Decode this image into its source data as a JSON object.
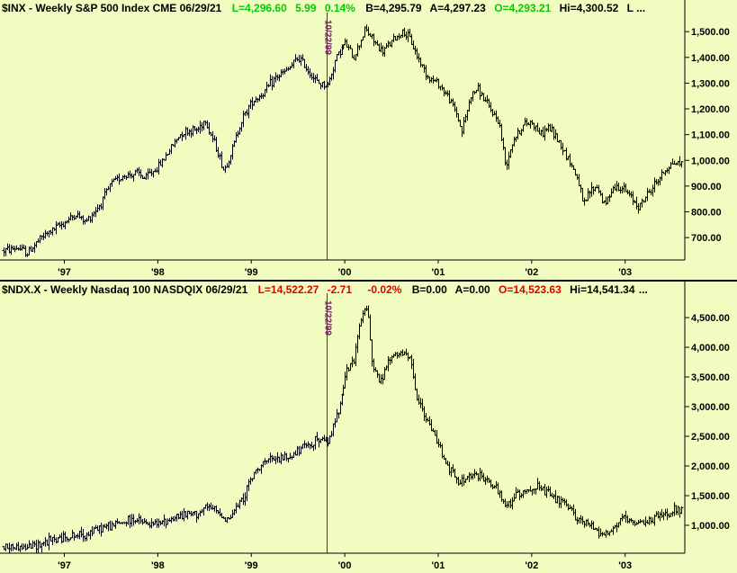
{
  "colors": {
    "background": "#f0fcc0",
    "bar": "#000000",
    "marker": "#7a1a6a",
    "up": "#00cc00",
    "down": "#e00000",
    "frame": "#000000"
  },
  "chart_data": [
    {
      "type": "bar",
      "symbol": "$INX",
      "header": {
        "name": "$INX - Weekly  S&P 500 Index  CME  06/29/21",
        "last": "L=4,296.60",
        "change": "5.99",
        "pct": "0.14%",
        "bid": "B=4,295.79",
        "ask": "A=4,297.23",
        "open": "O=4,293.21",
        "high": "Hi=4,300.52",
        "more": "L ..."
      },
      "header_color": "up",
      "ylim": [
        620,
        1560
      ],
      "y_ticks": [
        700,
        800,
        900,
        1000,
        1100,
        1200,
        1300,
        1400,
        1500
      ],
      "y_tick_labels": [
        "700.00",
        "800.00",
        "900.00",
        "1,000.00",
        "1,100.00",
        "1,200.00",
        "1,300.00",
        "1,400.00",
        "1,500.00"
      ],
      "x_range": [
        1996.35,
        2003.6
      ],
      "x_ticks": [
        1997,
        1998,
        1999,
        2000,
        2001,
        2002,
        2003
      ],
      "x_tick_labels": [
        "'97",
        "'98",
        "'99",
        "'00",
        "'01",
        "'02",
        "'03"
      ],
      "marker": {
        "x": 1999.81,
        "label": "10/22/99"
      },
      "series": [
        [
          1996.35,
          650
        ],
        [
          1996.5,
          660
        ],
        [
          1996.6,
          640
        ],
        [
          1996.75,
          700
        ],
        [
          1997.0,
          760
        ],
        [
          1997.12,
          790
        ],
        [
          1997.22,
          760
        ],
        [
          1997.38,
          830
        ],
        [
          1997.5,
          910
        ],
        [
          1997.62,
          940
        ],
        [
          1997.78,
          950
        ],
        [
          1997.85,
          930
        ],
        [
          1998.0,
          975
        ],
        [
          1998.12,
          1040
        ],
        [
          1998.25,
          1110
        ],
        [
          1998.42,
          1120
        ],
        [
          1998.5,
          1160
        ],
        [
          1998.55,
          1110
        ],
        [
          1998.62,
          1050
        ],
        [
          1998.7,
          960
        ],
        [
          1998.78,
          1030
        ],
        [
          1998.88,
          1150
        ],
        [
          1999.0,
          1230
        ],
        [
          1999.12,
          1260
        ],
        [
          1999.25,
          1320
        ],
        [
          1999.38,
          1350
        ],
        [
          1999.5,
          1400
        ],
        [
          1999.58,
          1360
        ],
        [
          1999.7,
          1300
        ],
        [
          1999.81,
          1290
        ],
        [
          1999.9,
          1400
        ],
        [
          2000.0,
          1455
        ],
        [
          2000.1,
          1400
        ],
        [
          2000.22,
          1510
        ],
        [
          2000.3,
          1470
        ],
        [
          2000.4,
          1420
        ],
        [
          2000.5,
          1460
        ],
        [
          2000.62,
          1500
        ],
        [
          2000.7,
          1470
        ],
        [
          2000.78,
          1400
        ],
        [
          2000.9,
          1320
        ],
        [
          2001.0,
          1300
        ],
        [
          2001.1,
          1250
        ],
        [
          2001.2,
          1180
        ],
        [
          2001.25,
          1110
        ],
        [
          2001.35,
          1250
        ],
        [
          2001.42,
          1280
        ],
        [
          2001.55,
          1200
        ],
        [
          2001.65,
          1150
        ],
        [
          2001.72,
          980
        ],
        [
          2001.8,
          1080
        ],
        [
          2001.92,
          1140
        ],
        [
          2002.0,
          1150
        ],
        [
          2002.1,
          1100
        ],
        [
          2002.18,
          1130
        ],
        [
          2002.28,
          1080
        ],
        [
          2002.4,
          1000
        ],
        [
          2002.5,
          920
        ],
        [
          2002.55,
          820
        ],
        [
          2002.62,
          880
        ],
        [
          2002.7,
          900
        ],
        [
          2002.78,
          820
        ],
        [
          2002.85,
          890
        ],
        [
          2002.95,
          900
        ],
        [
          2003.05,
          860
        ],
        [
          2003.15,
          820
        ],
        [
          2003.22,
          860
        ],
        [
          2003.32,
          910
        ],
        [
          2003.42,
          960
        ],
        [
          2003.5,
          990
        ],
        [
          2003.6,
          990
        ]
      ]
    },
    {
      "type": "bar",
      "symbol": "$NDX.X",
      "header": {
        "name": "$NDX.X - Weekly  Nasdaq 100  NASDQIX  06/29/21",
        "last": "L=14,522.27",
        "change": "-2.71",
        "pct": "-0.02%",
        "bid": "B=0.00",
        "ask": "A=0.00",
        "open": "O=14,523.63",
        "high": "Hi=14,541.34",
        "more": "..."
      },
      "header_color": "down",
      "ylim": [
        560,
        4850
      ],
      "y_ticks": [
        1000,
        1500,
        2000,
        2500,
        3000,
        3500,
        4000,
        4500
      ],
      "y_tick_labels": [
        "1,000.00",
        "1,500.00",
        "2,000.00",
        "2,500.00",
        "3,000.00",
        "3,500.00",
        "4,000.00",
        "4,500.00"
      ],
      "x_range": [
        1996.35,
        2003.6
      ],
      "x_ticks": [
        1997,
        1998,
        1999,
        2000,
        2001,
        2002,
        2003
      ],
      "x_tick_labels": [
        "'97",
        "'98",
        "'99",
        "'00",
        "'01",
        "'02",
        "'03"
      ],
      "marker": {
        "x": 1999.81,
        "label": "10/22/99"
      },
      "series": [
        [
          1996.35,
          640
        ],
        [
          1996.6,
          630
        ],
        [
          1996.8,
          720
        ],
        [
          1997.0,
          800
        ],
        [
          1997.2,
          840
        ],
        [
          1997.4,
          960
        ],
        [
          1997.6,
          1040
        ],
        [
          1997.75,
          1100
        ],
        [
          1997.9,
          1000
        ],
        [
          1998.0,
          1020
        ],
        [
          1998.2,
          1150
        ],
        [
          1998.4,
          1200
        ],
        [
          1998.55,
          1300
        ],
        [
          1998.65,
          1200
        ],
        [
          1998.75,
          1100
        ],
        [
          1998.9,
          1450
        ],
        [
          1999.0,
          1800
        ],
        [
          1999.1,
          2050
        ],
        [
          1999.25,
          2100
        ],
        [
          1999.4,
          2150
        ],
        [
          1999.55,
          2300
        ],
        [
          1999.7,
          2450
        ],
        [
          1999.81,
          2400
        ],
        [
          1999.92,
          2900
        ],
        [
          2000.0,
          3500
        ],
        [
          2000.1,
          3800
        ],
        [
          2000.18,
          4500
        ],
        [
          2000.24,
          4700
        ],
        [
          2000.3,
          3700
        ],
        [
          2000.38,
          3400
        ],
        [
          2000.48,
          3800
        ],
        [
          2000.6,
          3900
        ],
        [
          2000.7,
          3800
        ],
        [
          2000.78,
          3100
        ],
        [
          2000.9,
          2700
        ],
        [
          2001.0,
          2400
        ],
        [
          2001.1,
          2000
        ],
        [
          2001.22,
          1700
        ],
        [
          2001.35,
          1850
        ],
        [
          2001.5,
          1800
        ],
        [
          2001.62,
          1600
        ],
        [
          2001.72,
          1300
        ],
        [
          2001.82,
          1500
        ],
        [
          2001.95,
          1600
        ],
        [
          2002.05,
          1650
        ],
        [
          2002.2,
          1500
        ],
        [
          2002.35,
          1350
        ],
        [
          2002.5,
          1100
        ],
        [
          2002.62,
          1000
        ],
        [
          2002.72,
          900
        ],
        [
          2002.82,
          850
        ],
        [
          2002.92,
          1050
        ],
        [
          2003.0,
          1100
        ],
        [
          2003.1,
          1000
        ],
        [
          2003.2,
          1050
        ],
        [
          2003.35,
          1150
        ],
        [
          2003.45,
          1200
        ],
        [
          2003.55,
          1280
        ],
        [
          2003.6,
          1250
        ]
      ]
    }
  ]
}
